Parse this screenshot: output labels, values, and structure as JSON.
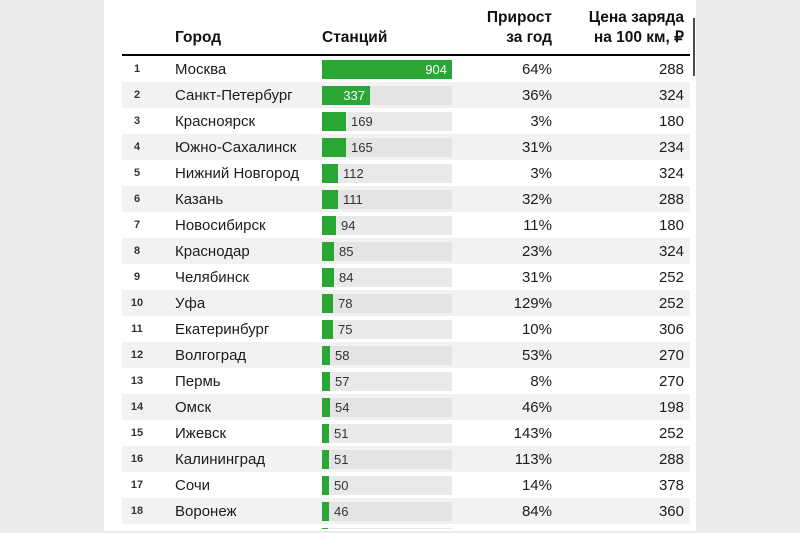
{
  "table": {
    "header": {
      "city": "Город",
      "stations": "Станций",
      "growth": "Прирост\nза год",
      "price": "Цена заряда\nна 100 км, ₽"
    }
  },
  "colors": {
    "bar_green": "#29a634",
    "bar_track": "#e9e9e9",
    "row_stripe": "#f2f2f2",
    "background": "#ebebeb",
    "header_rule": "#000000"
  },
  "chart_data": {
    "type": "table",
    "title": "",
    "columns": [
      "Город",
      "Станций",
      "Прирост за год",
      "Цена заряда на 100 км, ₽"
    ],
    "bar_column": "Станций",
    "bar_max": 904,
    "legend": "none",
    "rows": [
      {
        "rank": 1,
        "city": "Москва",
        "stations": 904,
        "growth": "64%",
        "price": 288
      },
      {
        "rank": 2,
        "city": "Санкт-Петербург",
        "stations": 337,
        "growth": "36%",
        "price": 324
      },
      {
        "rank": 3,
        "city": "Красноярск",
        "stations": 169,
        "growth": "3%",
        "price": 180
      },
      {
        "rank": 4,
        "city": "Южно-Сахалинск",
        "stations": 165,
        "growth": "31%",
        "price": 234
      },
      {
        "rank": 5,
        "city": "Нижний Новгород",
        "stations": 112,
        "growth": "3%",
        "price": 324
      },
      {
        "rank": 6,
        "city": "Казань",
        "stations": 111,
        "growth": "32%",
        "price": 288
      },
      {
        "rank": 7,
        "city": "Новосибирск",
        "stations": 94,
        "growth": "11%",
        "price": 180
      },
      {
        "rank": 8,
        "city": "Краснодар",
        "stations": 85,
        "growth": "23%",
        "price": 324
      },
      {
        "rank": 9,
        "city": "Челябинск",
        "stations": 84,
        "growth": "31%",
        "price": 252
      },
      {
        "rank": 10,
        "city": "Уфа",
        "stations": 78,
        "growth": "129%",
        "price": 252
      },
      {
        "rank": 11,
        "city": "Екатеринбург",
        "stations": 75,
        "growth": "10%",
        "price": 306
      },
      {
        "rank": 12,
        "city": "Волгоград",
        "stations": 58,
        "growth": "53%",
        "price": 270
      },
      {
        "rank": 13,
        "city": "Пермь",
        "stations": 57,
        "growth": "8%",
        "price": 270
      },
      {
        "rank": 14,
        "city": "Омск",
        "stations": 54,
        "growth": "46%",
        "price": 198
      },
      {
        "rank": 15,
        "city": "Ижевск",
        "stations": 51,
        "growth": "143%",
        "price": 252
      },
      {
        "rank": 16,
        "city": "Калининград",
        "stations": 51,
        "growth": "113%",
        "price": 288
      },
      {
        "rank": 17,
        "city": "Сочи",
        "stations": 50,
        "growth": "14%",
        "price": 378
      },
      {
        "rank": 18,
        "city": "Воронеж",
        "stations": 46,
        "growth": "84%",
        "price": 360
      }
    ],
    "partial_next_row": {
      "visible": true,
      "bar_fraction": 0.045
    }
  }
}
